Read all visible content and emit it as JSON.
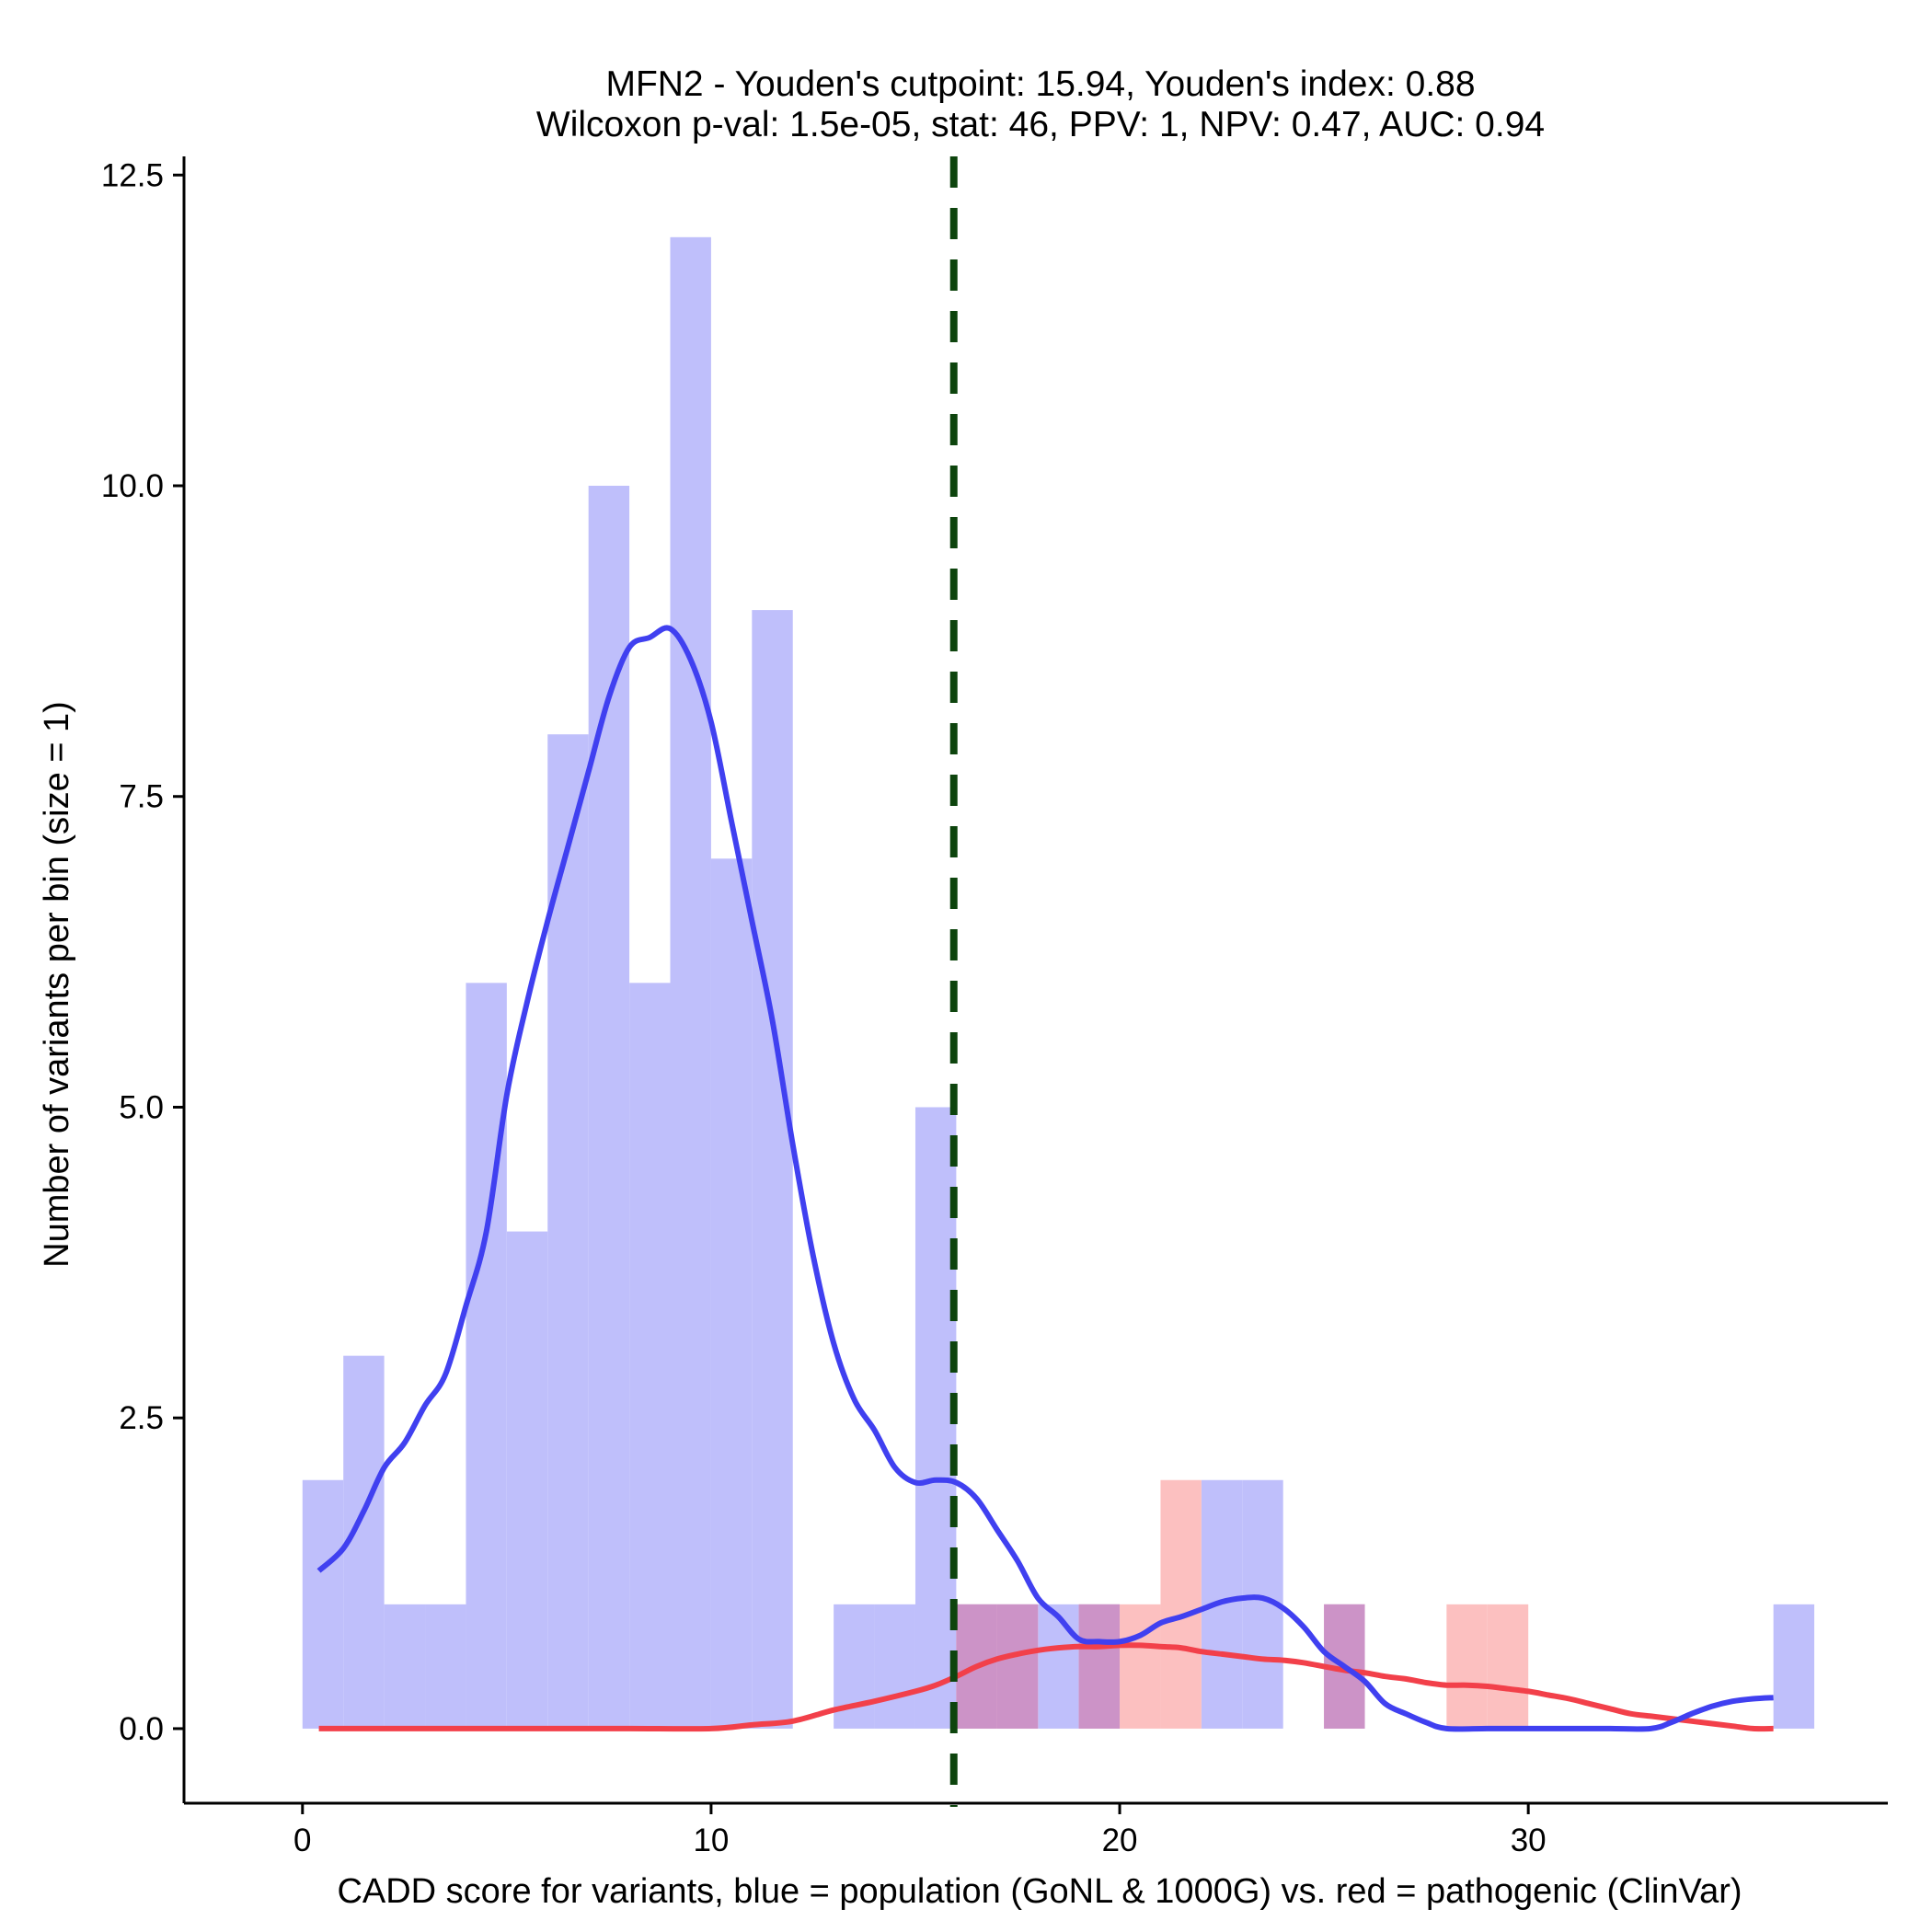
{
  "chart_data": {
    "type": "bar",
    "title": [
      "MFN2 - Youden's cutpoint: 15.94, Youden's index: 0.88",
      "Wilcoxon p-val: 1.5e-05, stat: 46, PPV: 1, NPV: 0.47, AUC: 0.94"
    ],
    "xlabel": "CADD score for variants, blue = population (GoNL & 1000G) vs. red = pathogenic (ClinVar)",
    "ylabel": "Number of variants per bin (size = 1)",
    "xlim": [
      -2.9,
      38.8
    ],
    "ylim": [
      -0.6,
      12.65
    ],
    "xticks": [
      0,
      10,
      20,
      30
    ],
    "xtick_labels": [
      "0",
      "10",
      "20",
      "30"
    ],
    "yticks": [
      0,
      2.5,
      5,
      7.5,
      10,
      12.5
    ],
    "ytick_labels": [
      "0.0",
      "2.5",
      "5.0",
      "7.5",
      "10.0",
      "12.5"
    ],
    "bin_width": 1,
    "cutpoint": 15.94,
    "colors": {
      "population_bar": "#bfbffb",
      "pathogenic_bar": "#fcc0c0",
      "overlap_bar": "#cc93c7",
      "population_line": "#4040f0",
      "pathogenic_line": "#f2404a",
      "cutpoint_line": "#0d440d"
    },
    "series": [
      {
        "name": "population (GoNL & 1000G)",
        "bins": [
          {
            "x": 0,
            "count": 2
          },
          {
            "x": 1,
            "count": 3
          },
          {
            "x": 2,
            "count": 1
          },
          {
            "x": 3,
            "count": 1
          },
          {
            "x": 4,
            "count": 6
          },
          {
            "x": 5,
            "count": 4
          },
          {
            "x": 6,
            "count": 8
          },
          {
            "x": 7,
            "count": 10
          },
          {
            "x": 8,
            "count": 6
          },
          {
            "x": 9,
            "count": 12
          },
          {
            "x": 10,
            "count": 7
          },
          {
            "x": 11,
            "count": 9
          },
          {
            "x": 13,
            "count": 1
          },
          {
            "x": 14,
            "count": 1
          },
          {
            "x": 15,
            "count": 5
          },
          {
            "x": 16,
            "count": 1
          },
          {
            "x": 17,
            "count": 1
          },
          {
            "x": 18,
            "count": 1
          },
          {
            "x": 19,
            "count": 1
          },
          {
            "x": 22,
            "count": 2
          },
          {
            "x": 23,
            "count": 2
          },
          {
            "x": 25,
            "count": 1
          },
          {
            "x": 36,
            "count": 1
          }
        ],
        "density": [
          [
            0.4,
            1.27
          ],
          [
            1.0,
            1.45
          ],
          [
            1.5,
            1.75
          ],
          [
            2.0,
            2.1
          ],
          [
            2.5,
            2.3
          ],
          [
            3.0,
            2.6
          ],
          [
            3.5,
            2.85
          ],
          [
            4.0,
            3.4
          ],
          [
            4.5,
            4.0
          ],
          [
            5.0,
            5.1
          ],
          [
            5.5,
            5.85
          ],
          [
            6.0,
            6.5
          ],
          [
            6.5,
            7.1
          ],
          [
            7.0,
            7.7
          ],
          [
            7.5,
            8.3
          ],
          [
            8.0,
            8.7
          ],
          [
            8.5,
            8.78
          ],
          [
            9.0,
            8.85
          ],
          [
            9.5,
            8.6
          ],
          [
            10.0,
            8.1
          ],
          [
            10.5,
            7.3
          ],
          [
            11.0,
            6.5
          ],
          [
            11.5,
            5.7
          ],
          [
            12.0,
            4.7
          ],
          [
            12.5,
            3.8
          ],
          [
            13.0,
            3.1
          ],
          [
            13.5,
            2.65
          ],
          [
            14.0,
            2.4
          ],
          [
            14.5,
            2.1
          ],
          [
            15.0,
            1.98
          ],
          [
            15.5,
            2.0
          ],
          [
            16.0,
            1.98
          ],
          [
            16.5,
            1.85
          ],
          [
            17.0,
            1.6
          ],
          [
            17.5,
            1.35
          ],
          [
            18.0,
            1.05
          ],
          [
            18.5,
            0.9
          ],
          [
            19.0,
            0.72
          ],
          [
            19.5,
            0.7
          ],
          [
            20.0,
            0.7
          ],
          [
            20.5,
            0.75
          ],
          [
            21.0,
            0.85
          ],
          [
            21.5,
            0.9
          ],
          [
            22.0,
            0.96
          ],
          [
            22.5,
            1.02
          ],
          [
            23.0,
            1.05
          ],
          [
            23.5,
            1.05
          ],
          [
            24.0,
            0.97
          ],
          [
            24.5,
            0.82
          ],
          [
            25.0,
            0.62
          ],
          [
            25.5,
            0.5
          ],
          [
            26.0,
            0.38
          ],
          [
            26.5,
            0.2
          ],
          [
            27.0,
            0.12
          ],
          [
            27.5,
            0.05
          ],
          [
            28.0,
            0.0
          ],
          [
            29.0,
            0.0
          ],
          [
            30.0,
            0.0
          ],
          [
            31.0,
            0.0
          ],
          [
            32.0,
            0.0
          ],
          [
            33.0,
            0.0
          ],
          [
            33.5,
            0.05
          ],
          [
            34.0,
            0.12
          ],
          [
            34.5,
            0.18
          ],
          [
            35.0,
            0.22
          ],
          [
            35.5,
            0.24
          ],
          [
            36.0,
            0.25
          ]
        ]
      },
      {
        "name": "pathogenic (ClinVar)",
        "bins": [
          {
            "x": 16,
            "count": 1
          },
          {
            "x": 17,
            "count": 1
          },
          {
            "x": 19,
            "count": 1
          },
          {
            "x": 20,
            "count": 1
          },
          {
            "x": 21,
            "count": 2
          },
          {
            "x": 25,
            "count": 1
          },
          {
            "x": 28,
            "count": 1
          },
          {
            "x": 29,
            "count": 1
          }
        ],
        "density": [
          [
            0.4,
            0.0
          ],
          [
            2.0,
            0.0
          ],
          [
            4.0,
            0.0
          ],
          [
            6.0,
            0.0
          ],
          [
            8.0,
            0.0
          ],
          [
            10.0,
            0.0
          ],
          [
            11.0,
            0.03
          ],
          [
            12.0,
            0.06
          ],
          [
            13.0,
            0.15
          ],
          [
            14.0,
            0.22
          ],
          [
            15.0,
            0.3
          ],
          [
            15.5,
            0.35
          ],
          [
            16.0,
            0.42
          ],
          [
            16.5,
            0.5
          ],
          [
            17.0,
            0.56
          ],
          [
            17.5,
            0.6
          ],
          [
            18.0,
            0.63
          ],
          [
            18.5,
            0.65
          ],
          [
            19.0,
            0.66
          ],
          [
            19.5,
            0.66
          ],
          [
            20.0,
            0.67
          ],
          [
            20.5,
            0.67
          ],
          [
            21.0,
            0.66
          ],
          [
            21.5,
            0.65
          ],
          [
            22.0,
            0.62
          ],
          [
            22.5,
            0.6
          ],
          [
            23.0,
            0.58
          ],
          [
            23.5,
            0.56
          ],
          [
            24.0,
            0.55
          ],
          [
            24.5,
            0.53
          ],
          [
            25.0,
            0.5
          ],
          [
            25.5,
            0.47
          ],
          [
            26.0,
            0.45
          ],
          [
            26.5,
            0.42
          ],
          [
            27.0,
            0.4
          ],
          [
            27.5,
            0.37
          ],
          [
            28.0,
            0.35
          ],
          [
            28.5,
            0.35
          ],
          [
            29.0,
            0.34
          ],
          [
            29.5,
            0.32
          ],
          [
            30.0,
            0.3
          ],
          [
            30.5,
            0.27
          ],
          [
            31.0,
            0.24
          ],
          [
            31.5,
            0.2
          ],
          [
            32.0,
            0.16
          ],
          [
            32.5,
            0.12
          ],
          [
            33.0,
            0.1
          ],
          [
            33.5,
            0.08
          ],
          [
            34.0,
            0.06
          ],
          [
            34.5,
            0.04
          ],
          [
            35.0,
            0.02
          ],
          [
            35.5,
            0.0
          ],
          [
            36.0,
            0.0
          ]
        ]
      }
    ]
  }
}
